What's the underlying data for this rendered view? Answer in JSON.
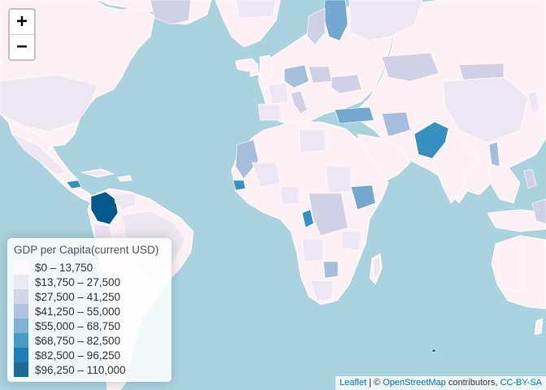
{
  "zoom": {
    "in_label": "+",
    "out_label": "−"
  },
  "legend": {
    "title": "GDP per Capita(current USD)",
    "items": [
      {
        "label": "$0 – 13,750",
        "color": "#fff7fb"
      },
      {
        "label": "$13,750 – 27,500",
        "color": "#ece7f2"
      },
      {
        "label": "$27,500 – 41,250",
        "color": "#d0d1e6"
      },
      {
        "label": "$41,250 – 55,000",
        "color": "#a6bddb"
      },
      {
        "label": "$55,000 – 68,750",
        "color": "#74a9cf"
      },
      {
        "label": "$68,750 – 82,500",
        "color": "#3690c0"
      },
      {
        "label": "$82,500 – 96,250",
        "color": "#0570b0"
      },
      {
        "label": "$96,250 – 110,000",
        "color": "#045a8d"
      }
    ]
  },
  "attribution": {
    "leaflet": "Leaflet",
    "separator": " | © ",
    "osm": "OpenStreetMap",
    "contributors": " contributors, ",
    "license": "CC-BY-SA"
  },
  "colors": {
    "ocean": "#aad3df",
    "land": "#fdf1f6",
    "border": "#ffffff"
  }
}
